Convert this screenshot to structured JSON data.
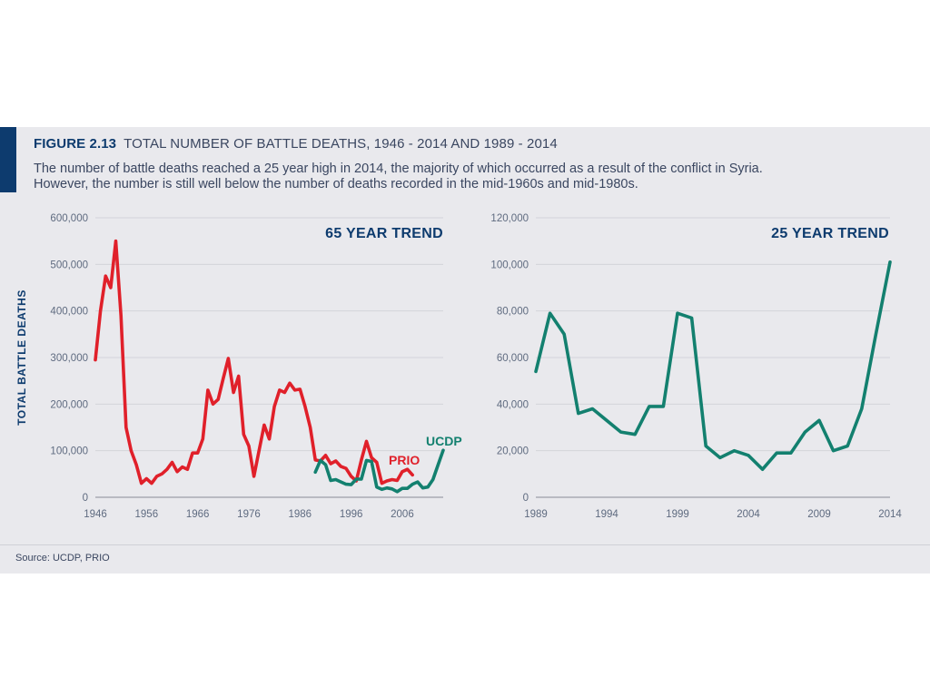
{
  "figure": {
    "number": "FIGURE 2.13",
    "title": "TOTAL NUMBER OF BATTLE DEATHS, 1946 - 2014 AND 1989 - 2014",
    "subtitle_line1": "The number of battle deaths reached a 25 year high in 2014, the majority of which occurred as a result of the conflict in Syria.",
    "subtitle_line2": "However, the number is still well below the number of deaths recorded in the mid-1960s and mid-1980s.",
    "source": "Source: UCDP, PRIO"
  },
  "colors": {
    "prio": "#e0202a",
    "ucdp": "#13806f",
    "navy": "#0d3b6e",
    "grid": "#d3d4da",
    "axis": "#a9abb3"
  },
  "chart_data": [
    {
      "type": "line",
      "title": "65 YEAR TREND",
      "xlabel": "",
      "ylabel": "TOTAL BATTLE DEATHS",
      "xlim": [
        1946,
        2014
      ],
      "ylim": [
        0,
        600000
      ],
      "x_ticks": [
        1946,
        1956,
        1966,
        1976,
        1986,
        1996,
        2006
      ],
      "x_tick_labels": [
        "1946",
        "1956",
        "1966",
        "1976",
        "1986",
        "1996",
        "2006"
      ],
      "y_ticks": [
        0,
        100000,
        200000,
        300000,
        400000,
        500000,
        600000
      ],
      "y_tick_labels": [
        "0",
        "100,000",
        "200,000",
        "300,000",
        "400,000",
        "500,000",
        "600,000"
      ],
      "grid": true,
      "series": [
        {
          "name": "PRIO",
          "label": "PRIO",
          "color_key": "prio",
          "x": [
            1946,
            1947,
            1948,
            1949,
            1950,
            1951,
            1952,
            1953,
            1954,
            1955,
            1956,
            1957,
            1958,
            1959,
            1960,
            1961,
            1962,
            1963,
            1964,
            1965,
            1966,
            1967,
            1968,
            1969,
            1970,
            1971,
            1972,
            1973,
            1974,
            1975,
            1976,
            1977,
            1978,
            1979,
            1980,
            1981,
            1982,
            1983,
            1984,
            1985,
            1986,
            1987,
            1988,
            1989,
            1990,
            1991,
            1992,
            1993,
            1994,
            1995,
            1996,
            1997,
            1998,
            1999,
            2000,
            2001,
            2002,
            2003,
            2004,
            2005,
            2006,
            2007,
            2008
          ],
          "values": [
            295000,
            400000,
            475000,
            450000,
            550000,
            390000,
            150000,
            100000,
            70000,
            30000,
            40000,
            30000,
            45000,
            50000,
            60000,
            75000,
            55000,
            65000,
            60000,
            95000,
            95000,
            125000,
            230000,
            200000,
            210000,
            255000,
            298000,
            225000,
            260000,
            135000,
            110000,
            45000,
            100000,
            155000,
            125000,
            195000,
            230000,
            225000,
            245000,
            230000,
            232000,
            195000,
            150000,
            80000,
            78000,
            90000,
            72000,
            78000,
            66000,
            62000,
            45000,
            35000,
            80000,
            120000,
            85000,
            75000,
            30000,
            35000,
            38000,
            36000,
            55000,
            60000,
            48000
          ]
        },
        {
          "name": "UCDP",
          "label": "UCDP",
          "color_key": "ucdp",
          "x": [
            1989,
            1990,
            1991,
            1992,
            1993,
            1994,
            1995,
            1996,
            1997,
            1998,
            1999,
            2000,
            2001,
            2002,
            2003,
            2004,
            2005,
            2006,
            2007,
            2008,
            2009,
            2010,
            2011,
            2012,
            2013,
            2014
          ],
          "values": [
            54000,
            79000,
            70000,
            36000,
            38000,
            33000,
            28000,
            27000,
            39000,
            39000,
            79000,
            77000,
            22000,
            17000,
            20000,
            18000,
            12000,
            19000,
            19000,
            28000,
            33000,
            20000,
            22000,
            38000,
            70000,
            101000
          ]
        }
      ]
    },
    {
      "type": "line",
      "title": "25 YEAR TREND",
      "xlabel": "",
      "ylabel": "",
      "xlim": [
        1989,
        2014
      ],
      "ylim": [
        0,
        120000
      ],
      "x_ticks": [
        1989,
        1994,
        1999,
        2004,
        2009,
        2014
      ],
      "x_tick_labels": [
        "1989",
        "1994",
        "1999",
        "2004",
        "2009",
        "2014"
      ],
      "y_ticks": [
        0,
        20000,
        40000,
        60000,
        80000,
        100000,
        120000
      ],
      "y_tick_labels": [
        "0",
        "20,000",
        "40,000",
        "60,000",
        "80,000",
        "100,000",
        "120,000"
      ],
      "grid": true,
      "series": [
        {
          "name": "UCDP",
          "color_key": "ucdp",
          "x": [
            1989,
            1990,
            1991,
            1992,
            1993,
            1994,
            1995,
            1996,
            1997,
            1998,
            1999,
            2000,
            2001,
            2002,
            2003,
            2004,
            2005,
            2006,
            2007,
            2008,
            2009,
            2010,
            2011,
            2012,
            2013,
            2014
          ],
          "values": [
            54000,
            79000,
            70000,
            36000,
            38000,
            33000,
            28000,
            27000,
            39000,
            39000,
            79000,
            77000,
            22000,
            17000,
            20000,
            18000,
            12000,
            19000,
            19000,
            28000,
            33000,
            20000,
            22000,
            38000,
            70000,
            101000
          ]
        }
      ]
    }
  ]
}
